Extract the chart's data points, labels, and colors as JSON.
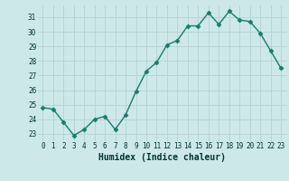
{
  "x": [
    0,
    1,
    2,
    3,
    4,
    5,
    6,
    7,
    8,
    9,
    10,
    11,
    12,
    13,
    14,
    15,
    16,
    17,
    18,
    19,
    20,
    21,
    22,
    23
  ],
  "y": [
    24.8,
    24.7,
    23.8,
    22.9,
    23.3,
    24.0,
    24.2,
    23.3,
    24.3,
    25.9,
    27.3,
    27.9,
    29.1,
    29.4,
    30.4,
    30.4,
    31.3,
    30.5,
    31.4,
    30.8,
    30.7,
    29.9,
    28.7,
    27.5
  ],
  "line_color": "#1a7a6e",
  "bg_color": "#cce8e8",
  "grid_color": "#b8d4d4",
  "xlabel": "Humidex (Indice chaleur)",
  "xlabel_color": "#003333",
  "tick_color": "#003333",
  "ylim": [
    22.5,
    31.8
  ],
  "yticks": [
    23,
    24,
    25,
    26,
    27,
    28,
    29,
    30,
    31
  ],
  "xticks": [
    0,
    1,
    2,
    3,
    4,
    5,
    6,
    7,
    8,
    9,
    10,
    11,
    12,
    13,
    14,
    15,
    16,
    17,
    18,
    19,
    20,
    21,
    22,
    23
  ],
  "marker": "D",
  "marker_size": 2.5,
  "line_width": 1.0
}
